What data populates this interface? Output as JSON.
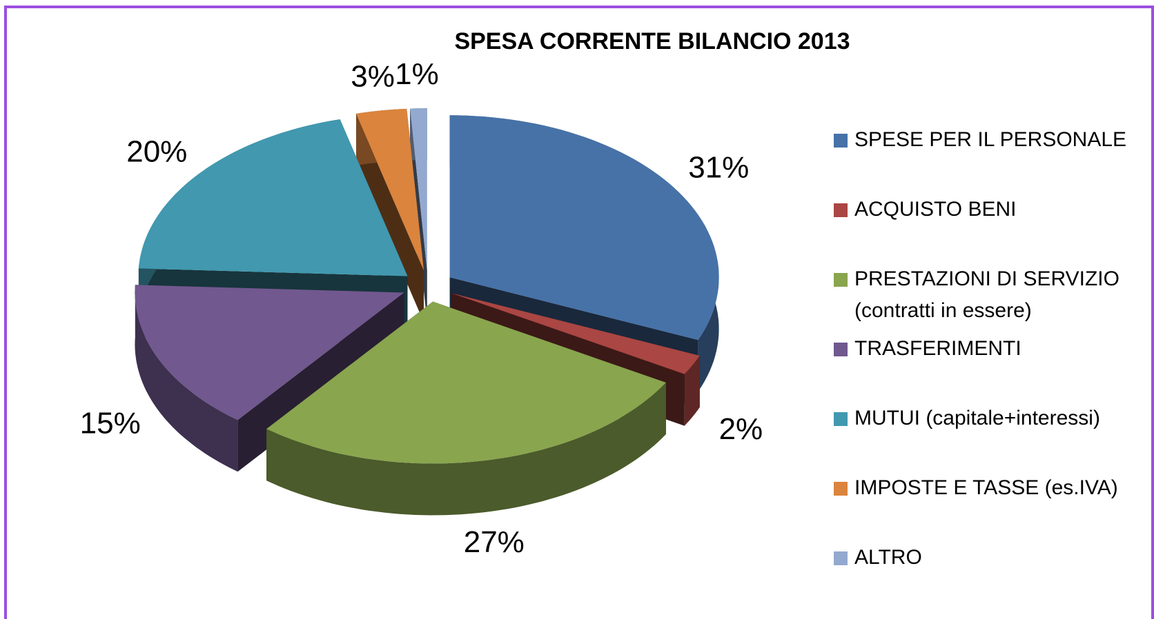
{
  "chart_data": {
    "type": "pie",
    "title": "SPESA CORRENTE BILANCIO 2013",
    "categories": [
      "SPESE PER IL PERSONALE",
      "ACQUISTO BENI",
      "PRESTAZIONI DI SERVIZIO (contratti in essere)",
      "TRASFERIMENTI",
      "MUTUI (capitale+interessi)",
      "IMPOSTE E TASSE (es.IVA)",
      "ALTRO"
    ],
    "values": [
      31,
      2,
      27,
      15,
      20,
      3,
      1
    ],
    "value_labels": [
      "31%",
      "2%",
      "27%",
      "15%",
      "20%",
      "3%",
      "1%"
    ],
    "colors": [
      "#4672a8",
      "#aa4643",
      "#89a54e",
      "#71588f",
      "#4198af",
      "#db843d",
      "#93a9cf"
    ],
    "legend": "right"
  }
}
